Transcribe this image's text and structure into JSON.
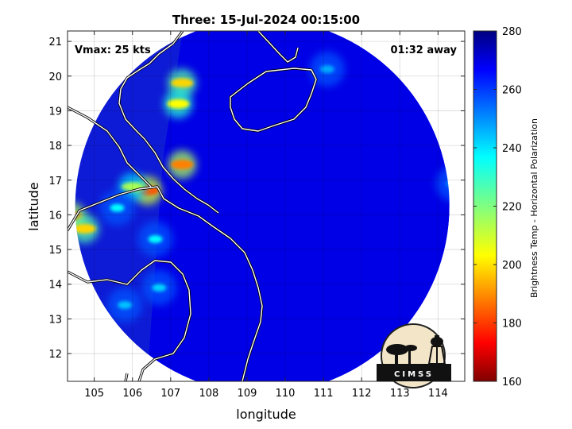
{
  "chart_data": {
    "type": "heatmap",
    "title": "Three: 15-Jul-2024 00:15:00",
    "xlabel": "longitude",
    "ylabel": "latitude",
    "xlim": [
      104.3,
      114.7
    ],
    "ylim": [
      11.2,
      21.3
    ],
    "xticks": [
      105,
      106,
      107,
      108,
      109,
      110,
      111,
      112,
      113,
      114
    ],
    "yticks": [
      12,
      13,
      14,
      15,
      16,
      17,
      18,
      19,
      20,
      21
    ],
    "grid": true,
    "annotations": {
      "vmax": "Vmax: 25 kts",
      "away": "01:32 away"
    },
    "colorbar": {
      "label": "Brightness Temp - Horizontal Polarization",
      "range": [
        160,
        280
      ],
      "ticks": [
        160,
        180,
        200,
        220,
        240,
        260,
        280
      ],
      "colormap": "jet"
    },
    "swath": {
      "center_lon": 109.4,
      "center_lat": 16.25,
      "radius_deg": 4.9,
      "background_value": 268
    },
    "features": [
      {
        "lon": 107.3,
        "lat": 17.45,
        "value": 190
      },
      {
        "lon": 106.4,
        "lat": 16.7,
        "value": 185
      },
      {
        "lon": 106.0,
        "lat": 16.8,
        "value": 215
      },
      {
        "lon": 107.3,
        "lat": 19.8,
        "value": 200
      },
      {
        "lon": 107.2,
        "lat": 19.2,
        "value": 205
      },
      {
        "lon": 104.4,
        "lat": 15.95,
        "value": 190
      },
      {
        "lon": 104.75,
        "lat": 15.6,
        "value": 200
      },
      {
        "lon": 106.6,
        "lat": 15.3,
        "value": 235
      },
      {
        "lon": 105.6,
        "lat": 16.2,
        "value": 235
      },
      {
        "lon": 106.7,
        "lat": 13.9,
        "value": 240
      },
      {
        "lon": 105.8,
        "lat": 13.4,
        "value": 242
      },
      {
        "lon": 111.1,
        "lat": 20.2,
        "value": 245
      },
      {
        "lon": 114.4,
        "lat": 16.9,
        "value": 248
      }
    ]
  },
  "logo": {
    "text": "CIMSS"
  }
}
